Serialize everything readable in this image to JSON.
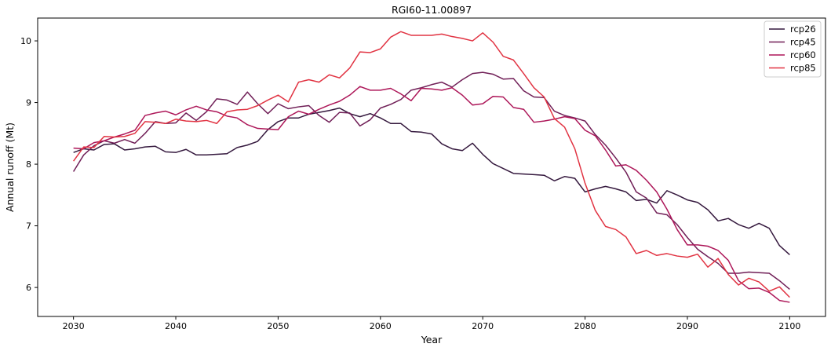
{
  "chart_data": {
    "type": "line",
    "title": "RGI60-11.00897",
    "xlabel": "Year",
    "ylabel": "Annual runoff (Mt)",
    "xlim": [
      2026.5,
      2103.5
    ],
    "ylim": [
      5.53,
      10.37
    ],
    "xticks": [
      2030,
      2040,
      2050,
      2060,
      2070,
      2080,
      2090,
      2100
    ],
    "yticks": [
      6,
      7,
      8,
      9,
      10
    ],
    "grid": false,
    "legend_position": "top-right",
    "x_start": 2030,
    "series": [
      {
        "name": "rcp26",
        "color": "#35193e",
        "values": [
          8.19,
          8.25,
          8.23,
          8.32,
          8.33,
          8.23,
          8.25,
          8.28,
          8.29,
          8.2,
          8.19,
          8.24,
          8.15,
          8.15,
          8.16,
          8.17,
          8.27,
          8.31,
          8.37,
          8.56,
          8.69,
          8.75,
          8.75,
          8.81,
          8.84,
          8.87,
          8.91,
          8.82,
          8.77,
          8.82,
          8.75,
          8.66,
          8.66,
          8.53,
          8.52,
          8.49,
          8.33,
          8.25,
          8.22,
          8.34,
          8.16,
          8.01,
          7.93,
          7.85,
          7.84,
          7.83,
          7.82,
          7.73,
          7.8,
          7.77,
          7.55,
          7.6,
          7.64,
          7.6,
          7.55,
          7.41,
          7.43,
          7.37,
          7.57,
          7.5,
          7.42,
          7.38,
          7.26,
          7.08,
          7.12,
          7.02,
          6.96,
          7.04,
          6.96,
          6.68,
          6.53
        ]
      },
      {
        "name": "rcp45",
        "color": "#701f57",
        "values": [
          7.88,
          8.15,
          8.3,
          8.38,
          8.34,
          8.4,
          8.34,
          8.5,
          8.69,
          8.66,
          8.67,
          8.83,
          8.71,
          8.85,
          9.06,
          9.04,
          8.97,
          9.17,
          8.98,
          8.82,
          8.98,
          8.9,
          8.93,
          8.95,
          8.79,
          8.68,
          8.84,
          8.83,
          8.62,
          8.72,
          8.91,
          8.97,
          9.05,
          9.2,
          9.24,
          9.29,
          9.33,
          9.25,
          9.37,
          9.47,
          9.49,
          9.46,
          9.38,
          9.39,
          9.19,
          9.09,
          9.08,
          8.86,
          8.79,
          8.75,
          8.7,
          8.48,
          8.31,
          8.1,
          7.87,
          7.55,
          7.45,
          7.21,
          7.18,
          7.02,
          6.81,
          6.62,
          6.5,
          6.39,
          6.23,
          6.23,
          6.25,
          6.24,
          6.23,
          6.11,
          5.97
        ]
      },
      {
        "name": "rcp60",
        "color": "#ad1759",
        "values": [
          8.26,
          8.25,
          8.35,
          8.38,
          8.44,
          8.49,
          8.55,
          8.79,
          8.83,
          8.86,
          8.8,
          8.88,
          8.94,
          8.88,
          8.85,
          8.78,
          8.75,
          8.64,
          8.58,
          8.57,
          8.56,
          8.77,
          8.86,
          8.81,
          8.89,
          8.96,
          9.02,
          9.12,
          9.26,
          9.2,
          9.2,
          9.23,
          9.14,
          9.03,
          9.23,
          9.22,
          9.2,
          9.24,
          9.12,
          8.96,
          8.98,
          9.1,
          9.09,
          8.92,
          8.89,
          8.68,
          8.7,
          8.73,
          8.77,
          8.74,
          8.55,
          8.46,
          8.23,
          7.97,
          7.99,
          7.9,
          7.74,
          7.55,
          7.27,
          6.94,
          6.69,
          6.69,
          6.67,
          6.6,
          6.44,
          6.11,
          5.98,
          5.99,
          5.92,
          5.79,
          5.76
        ]
      },
      {
        "name": "rcp85",
        "color": "#e13342",
        "values": [
          8.05,
          8.28,
          8.27,
          8.45,
          8.44,
          8.45,
          8.5,
          8.69,
          8.68,
          8.66,
          8.73,
          8.7,
          8.69,
          8.71,
          8.66,
          8.85,
          8.88,
          8.89,
          8.95,
          9.04,
          9.12,
          9.01,
          9.33,
          9.37,
          9.33,
          9.45,
          9.4,
          9.56,
          9.82,
          9.81,
          9.87,
          10.06,
          10.15,
          10.09,
          10.09,
          10.09,
          10.11,
          10.07,
          10.04,
          10.0,
          10.13,
          9.98,
          9.75,
          9.69,
          9.47,
          9.24,
          9.09,
          8.74,
          8.6,
          8.25,
          7.69,
          7.25,
          6.99,
          6.94,
          6.82,
          6.55,
          6.6,
          6.52,
          6.55,
          6.51,
          6.49,
          6.54,
          6.33,
          6.47,
          6.21,
          6.04,
          6.15,
          6.09,
          5.94,
          6.01,
          5.84
        ]
      }
    ]
  }
}
